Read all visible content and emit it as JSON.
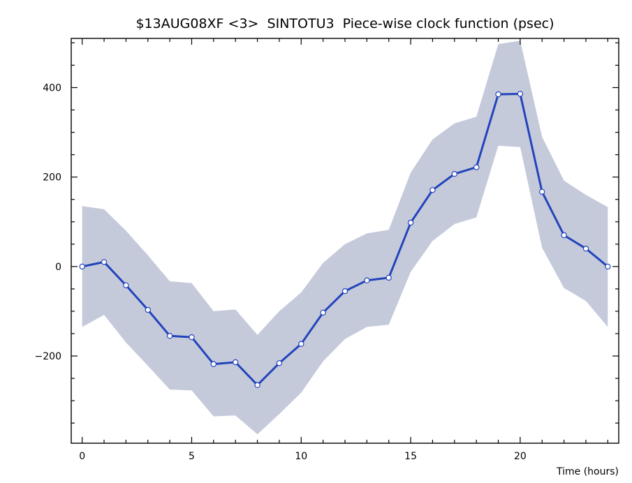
{
  "chart_data": {
    "type": "line",
    "title": "$13AUG08XF <3>  SINTOTU3  Piece-wise clock function (psec)",
    "xlabel": "Time (hours)",
    "ylabel": "",
    "xlim": [
      -0.5,
      24.5
    ],
    "ylim": [
      -395,
      510
    ],
    "xticks": [
      0,
      5,
      10,
      15,
      20
    ],
    "yticks": [
      -200,
      0,
      200,
      400
    ],
    "grid": false,
    "colors": {
      "line": "#2244bb",
      "band": "#c5cadb",
      "marker_fill": "#ffffff",
      "marker_stroke": "#2244bb"
    },
    "x": [
      0,
      1,
      2,
      3,
      4,
      5,
      6,
      7,
      8,
      9,
      10,
      11,
      12,
      13,
      14,
      15,
      16,
      17,
      18,
      19,
      20,
      21,
      22,
      23,
      24
    ],
    "series": [
      {
        "values": [
          0,
          10,
          -42,
          -97,
          -155,
          -158,
          -218,
          -214,
          -265,
          -216,
          -173,
          -103,
          -55,
          -31,
          -25,
          98,
          171,
          207,
          222,
          385,
          386,
          167,
          70,
          40,
          0
        ],
        "lower": [
          -135,
          -108,
          -170,
          -222,
          -275,
          -277,
          -335,
          -333,
          -375,
          -330,
          -282,
          -212,
          -162,
          -135,
          -130,
          -12,
          57,
          95,
          110,
          270,
          267,
          42,
          -48,
          -77,
          -135
        ],
        "upper": [
          135,
          128,
          80,
          25,
          -33,
          -37,
          -100,
          -96,
          -153,
          -100,
          -58,
          8,
          50,
          74,
          82,
          210,
          284,
          320,
          335,
          497,
          505,
          290,
          192,
          160,
          133
        ]
      }
    ]
  }
}
